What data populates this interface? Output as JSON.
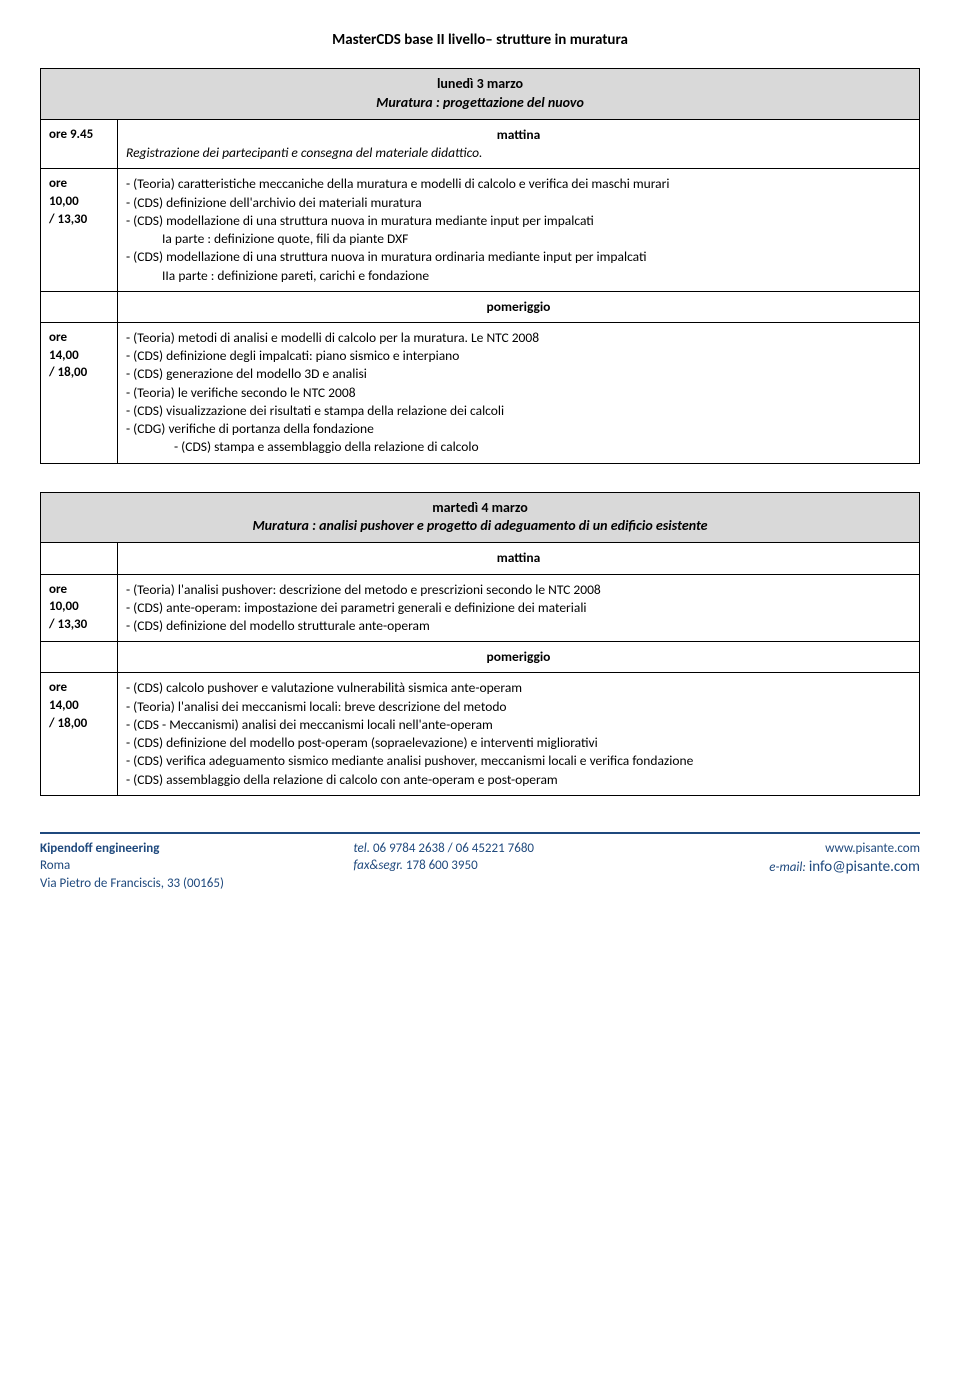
{
  "page_title": "MasterCDS base II livello– strutture in muratura",
  "day1": {
    "date": "lunedì 3 marzo",
    "subtitle": "Muratura : progettazione del nuovo",
    "morning_label": "mattina",
    "reg_time": "ore 9.45",
    "reg_text": "Registrazione dei partecipanti e consegna del materiale didattico.",
    "morning_time_1": "ore",
    "morning_time_2": "10,00",
    "morning_time_3": " / 13,30",
    "m_l1": "- (Teoria) caratteristiche meccaniche della muratura e modelli di calcolo e verifica dei maschi murari",
    "m_l2": "- (CDS) definizione dell'archivio dei materiali muratura",
    "m_l3": "- (CDS) modellazione di una struttura nuova in muratura mediante input per impalcati",
    "m_l3a": "Ia parte : definizione quote, fili da piante DXF",
    "m_l4": "- (CDS) modellazione di una struttura nuova in muratura ordinaria mediante input per impalcati",
    "m_l4a": "IIa parte : definizione pareti, carichi e fondazione",
    "afternoon_label": "pomeriggio",
    "afternoon_time_1": "ore",
    "afternoon_time_2": "14,00",
    "afternoon_time_3": " / 18,00",
    "a_l1": "- (Teoria) metodi di analisi e modelli di calcolo per la muratura. Le NTC 2008",
    "a_l2": "- (CDS) definizione degli impalcati: piano sismico e interpiano",
    "a_l3": "- (CDS) generazione del modello 3D e analisi",
    "a_l4": "- (Teoria) le verifiche secondo le NTC 2008",
    "a_l5": "- (CDS) visualizzazione dei risultati e stampa della relazione dei calcoli",
    "a_l6": "- (CDG) verifiche di portanza della fondazione",
    "a_l7": "- (CDS) stampa e assemblaggio della relazione di calcolo"
  },
  "day2": {
    "date": "martedì 4 marzo",
    "subtitle": "Muratura : analisi pushover e progetto di adeguamento di un edificio esistente",
    "morning_label": "mattina",
    "morning_time_1": "ore",
    "morning_time_2": "10,00",
    "morning_time_3": " / 13,30",
    "m_l1": "- (Teoria) l'analisi pushover: descrizione del metodo e prescrizioni secondo le NTC 2008",
    "m_l2": "- (CDS) ante-operam: impostazione dei parametri generali e definizione dei materiali",
    "m_l3": "- (CDS) definizione del modello strutturale ante-operam",
    "afternoon_label": "pomeriggio",
    "afternoon_time_1": "ore",
    "afternoon_time_2": "14,00",
    "afternoon_time_3": " / 18,00",
    "a_l1": "- (CDS) calcolo pushover e valutazione vulnerabilità sismica ante-operam",
    "a_l2": "- (Teoria) l'analisi dei meccanismi locali: breve descrizione del metodo",
    "a_l3": "- (CDS - Meccanismi) analisi dei meccanismi locali nell'ante-operam",
    "a_l4": "- (CDS) definizione del modello post-operam (sopraelevazione) e interventi migliorativi",
    "a_l5": "- (CDS) verifica adeguamento sismico mediante analisi pushover, meccanismi locali e verifica fondazione",
    "a_l6": "- (CDS) assemblaggio della relazione di calcolo con ante-operam e post-operam"
  },
  "footer": {
    "org": "Kipendoff engineering",
    "city": "Roma",
    "addr": "Via Pietro de Franciscis, 33 (00165)",
    "tel_label": "tel.",
    "tel": " 06 9784 2638 / 06 45221 7680",
    "fax_label": "fax&segr.",
    "fax": " 178 600 3950",
    "web": "www.pisante.com",
    "mail_label": "e-mail: ",
    "mail": "info@pisante.com"
  }
}
